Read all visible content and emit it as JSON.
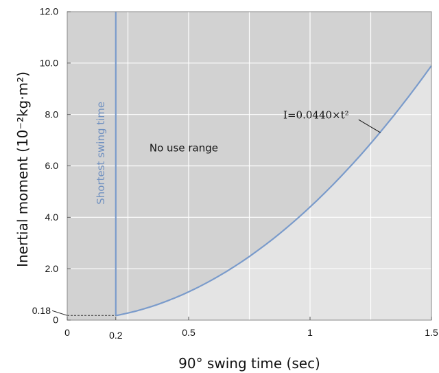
{
  "chart_data": {
    "type": "line",
    "xlabel": "90° swing time (sec)",
    "ylabel": "Inertial moment (10⁻²kg·m²)",
    "xlim": [
      0,
      1.5
    ],
    "ylim": [
      0,
      12
    ],
    "grid": true,
    "x_ticks": [
      {
        "value": 0,
        "label": "0"
      },
      {
        "value": 0.2,
        "label": "0.2"
      },
      {
        "value": 0.5,
        "label": "0.5"
      },
      {
        "value": 1.0,
        "label": "1"
      },
      {
        "value": 1.5,
        "label": "1.5"
      }
    ],
    "y_ticks": [
      {
        "value": 0,
        "label": "0"
      },
      {
        "value": 0.18,
        "label": "0.18"
      },
      {
        "value": 2,
        "label": "2.0"
      },
      {
        "value": 4,
        "label": "4.0"
      },
      {
        "value": 6,
        "label": "6.0"
      },
      {
        "value": 8,
        "label": "8.0"
      },
      {
        "value": 10,
        "label": "10.0"
      },
      {
        "value": 12,
        "label": "12.0"
      }
    ],
    "x_gridlines": [
      0.25,
      0.5,
      0.75,
      1.0,
      1.25
    ],
    "curve": {
      "formula_label": "I=0.0440×t²",
      "coefficient_kg_m2": 0.044,
      "display_scale": 100,
      "x_start": 0.2,
      "x_end": 1.5
    },
    "shortest_swing_time": {
      "x": 0.2,
      "label": "Shortest swing time"
    },
    "min_inertia_marker": {
      "y": 0.18
    },
    "no_use_region_label": "No use range",
    "colors": {
      "no_use_fill": "#d2d2d2",
      "usable_fill": "#e4e4e4",
      "curve": "#7a9bcb",
      "gridline": "#ffffff",
      "frame": "#8a8a8a"
    }
  }
}
